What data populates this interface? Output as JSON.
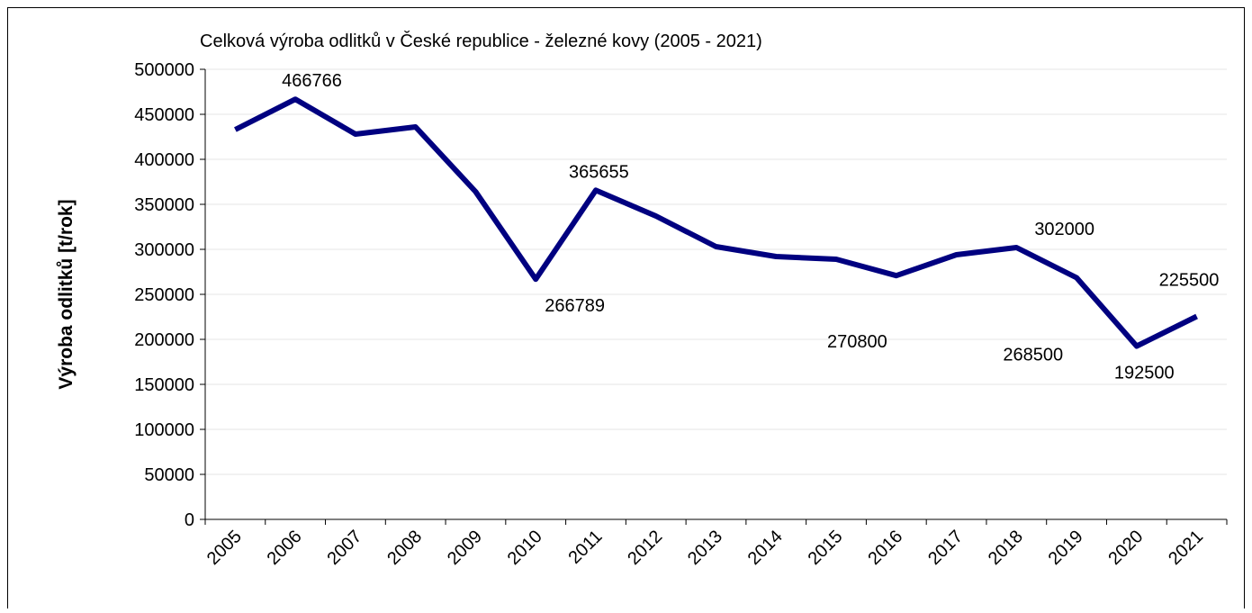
{
  "chart_data": {
    "type": "line",
    "title": "Celková výroba odlitků v České republice - železné kovy (2005 - 2021)",
    "y_label": "Výroba odlitků [t/rok]",
    "categories": [
      "2005",
      "2006",
      "2007",
      "2008",
      "2009",
      "2010",
      "2011",
      "2012",
      "2013",
      "2014",
      "2015",
      "2016",
      "2017",
      "2018",
      "2019",
      "2020",
      "2021"
    ],
    "series": [
      {
        "name": "Výroba",
        "color": "#000080",
        "values": [
          433000,
          466766,
          428000,
          436000,
          364000,
          266789,
          365655,
          337000,
          303000,
          292000,
          289000,
          270800,
          294000,
          302000,
          268500,
          192500,
          225500
        ],
        "value_labels": [
          null,
          "466766",
          null,
          null,
          null,
          "266789",
          "365655",
          null,
          null,
          null,
          null,
          "270800",
          null,
          "302000",
          "268500",
          "192500",
          "225500"
        ]
      }
    ],
    "ylim": [
      0,
      500000
    ],
    "yticks": [
      0,
      50000,
      100000,
      150000,
      200000,
      250000,
      300000,
      350000,
      400000,
      450000,
      500000
    ],
    "grid": true
  }
}
